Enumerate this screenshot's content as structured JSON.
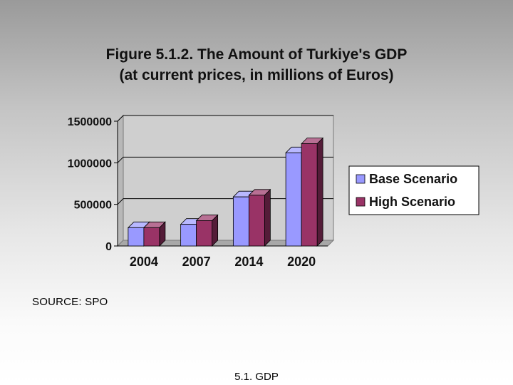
{
  "slide": {
    "source_note": "SOURCE: SPO",
    "footer": "5.1. GDP"
  },
  "chart_data": {
    "type": "bar",
    "title": "Figure 5.1.2. The Amount of Turkiye's GDP",
    "subtitle": "(at current prices, in millions of Euros)",
    "categories": [
      "2004",
      "2007",
      "2014",
      "2020"
    ],
    "series": [
      {
        "name": "Base Scenario",
        "values": [
          220000,
          260000,
          590000,
          1120000
        ],
        "color": "#9999ff"
      },
      {
        "name": "High Scenario",
        "values": [
          220000,
          305000,
          610000,
          1230000
        ],
        "color": "#993366"
      }
    ],
    "ylim": [
      0,
      1500000
    ],
    "yticks": [
      "0",
      "500000",
      "1000000",
      "1500000"
    ],
    "grid": true,
    "legend_position": "right"
  }
}
